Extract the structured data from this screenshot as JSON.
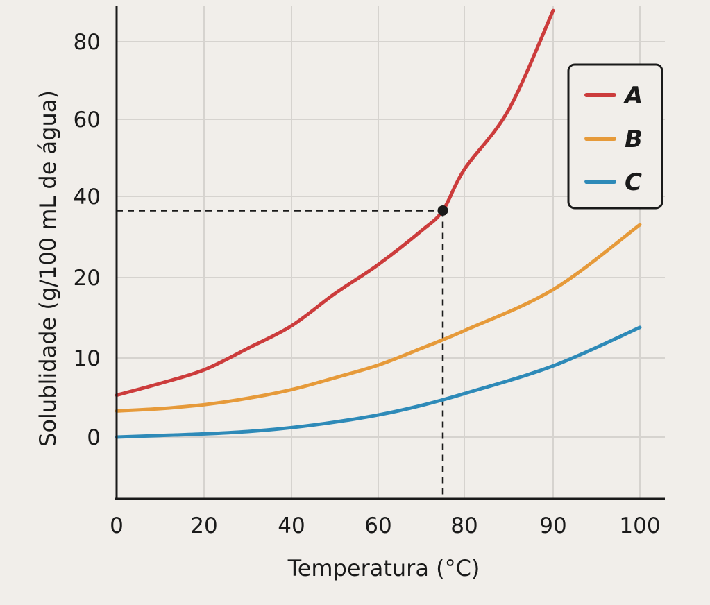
{
  "chart_data": {
    "type": "line",
    "xlabel": "Temperatura (°C)",
    "ylabel": "Solublidade (g/100 mL de água)",
    "x_ticks": [
      "0",
      "20",
      "40",
      "60",
      "80",
      "90",
      "100"
    ],
    "y_ticks": [
      "0",
      "10",
      "20",
      "40",
      "60",
      "80"
    ],
    "grid": true,
    "legend_position": "top-right",
    "series": [
      {
        "name": "A",
        "color": "#cc3c3c",
        "points": [
          [
            0,
            5.3
          ],
          [
            10,
            6.8
          ],
          [
            20,
            8.5
          ],
          [
            30,
            11.2
          ],
          [
            40,
            14.0
          ],
          [
            50,
            18.0
          ],
          [
            60,
            23.2
          ],
          [
            70,
            31.5
          ],
          [
            75,
            36.5
          ],
          [
            80,
            47.0
          ],
          [
            85,
            62.5
          ],
          [
            90,
            88.0
          ]
        ]
      },
      {
        "name": "B",
        "color": "#e69a3a",
        "points": [
          [
            0,
            3.3
          ],
          [
            10,
            3.6
          ],
          [
            20,
            4.1
          ],
          [
            30,
            4.9
          ],
          [
            40,
            6.0
          ],
          [
            50,
            7.5
          ],
          [
            60,
            9.1
          ],
          [
            70,
            11.2
          ],
          [
            80,
            13.4
          ],
          [
            90,
            18.5
          ],
          [
            100,
            33.0
          ]
        ]
      },
      {
        "name": "C",
        "color": "#2e8ab8",
        "points": [
          [
            0,
            0.0
          ],
          [
            10,
            0.2
          ],
          [
            20,
            0.4
          ],
          [
            30,
            0.7
          ],
          [
            40,
            1.2
          ],
          [
            50,
            1.9
          ],
          [
            60,
            2.8
          ],
          [
            70,
            4.0
          ],
          [
            80,
            5.5
          ],
          [
            90,
            9.0
          ],
          [
            100,
            13.8
          ]
        ]
      }
    ],
    "annotation": {
      "x": 75,
      "y": 36.5,
      "guide_lines": "dashed"
    }
  }
}
